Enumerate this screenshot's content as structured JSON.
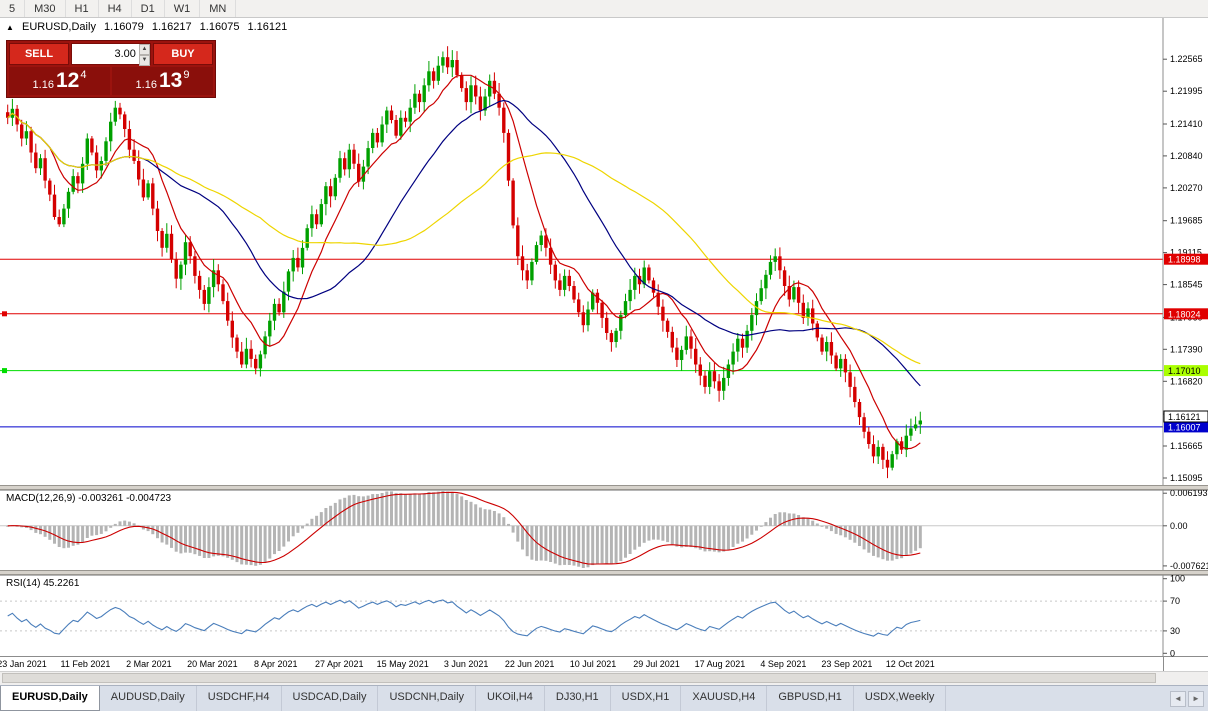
{
  "icons": {
    "collapse": "▲",
    "spinner_up": "▲",
    "spinner_down": "▼",
    "tab_scroll_left": "◄",
    "tab_scroll_right": "►"
  },
  "toolbar": {
    "timeframes": [
      "5",
      "M30",
      "H1",
      "H4",
      "D1",
      "W1",
      "MN"
    ]
  },
  "chart": {
    "title": {
      "symbol": "EURUSD,Daily",
      "open": "1.16079",
      "high": "1.16217",
      "low": "1.16075",
      "close": "1.16121"
    },
    "trade_widget": {
      "sell_label": "SELL",
      "buy_label": "BUY",
      "volume": "3.00",
      "sell_price_prefix": "1.16",
      "sell_price_big": "12",
      "sell_price_sup": "4",
      "buy_price_prefix": "1.16",
      "buy_price_big": "13",
      "buy_price_sup": "9"
    },
    "colors": {
      "up": "#00A000",
      "down": "#D40000",
      "ma_fast": "#CC0000",
      "ma_mid": "#000080",
      "ma_slow": "#EED500",
      "bid_line": "#0000CC"
    },
    "price_axis": {
      "ticks": [
        "1.22565",
        "1.21995",
        "1.21410",
        "1.20840",
        "1.20270",
        "1.19685",
        "1.19115",
        "1.18545",
        "1.17960",
        "1.17390",
        "1.16820",
        "1.16235",
        "1.15665",
        "1.15095"
      ]
    },
    "hlines": [
      {
        "price": 1.18998,
        "label": "1.18998",
        "color": "#E00000",
        "tag_bg": "#E00000",
        "tag_fg": "#FFFFFF",
        "handle": false
      },
      {
        "price": 1.18024,
        "label": "1.18024",
        "color": "#E00000",
        "tag_bg": "#E00000",
        "tag_fg": "#FFFFFF",
        "handle": true
      },
      {
        "price": 1.1701,
        "label": "1.17010",
        "color": "#00DD00",
        "tag_bg": "#AAFF00",
        "tag_fg": "#000000",
        "handle": true
      },
      {
        "price": 1.16007,
        "label": "1.16007",
        "color": "#0000CC",
        "tag_bg": "#0000CC",
        "tag_fg": "#FFFFFF",
        "handle": false
      }
    ],
    "last_price_tag": {
      "price": 1.16121,
      "label": "1.16121"
    }
  },
  "macd": {
    "title": "MACD(12,26,9) -0.003261 -0.004723",
    "axis": [
      {
        "v": 0.006193,
        "label": "0.006193"
      },
      {
        "v": 0,
        "label": "0.00"
      },
      {
        "v": -0.007621,
        "label": "-0.007621"
      }
    ]
  },
  "rsi": {
    "title": "RSI(14) 45.2261",
    "axis": [
      {
        "v": 100,
        "label": "100"
      },
      {
        "v": 70,
        "label": "70"
      },
      {
        "v": 30,
        "label": "30"
      },
      {
        "v": 0,
        "label": "0"
      }
    ],
    "levels": [
      70,
      30
    ]
  },
  "dates": [
    "23 Jan 2021",
    "11 Feb 2021",
    "2 Mar 2021",
    "20 Mar 2021",
    "8 Apr 2021",
    "27 Apr 2021",
    "15 May 2021",
    "3 Jun 2021",
    "22 Jun 2021",
    "10 Jul 2021",
    "29 Jul 2021",
    "17 Aug 2021",
    "4 Sep 2021",
    "23 Sep 2021",
    "12 Oct 2021"
  ],
  "tabs": {
    "items": [
      {
        "label": "EURUSD,Daily",
        "active": true
      },
      {
        "label": "AUDUSD,Daily",
        "active": false
      },
      {
        "label": "USDCHF,H4",
        "active": false
      },
      {
        "label": "USDCAD,Daily",
        "active": false
      },
      {
        "label": "USDCNH,Daily",
        "active": false
      },
      {
        "label": "UKOil,H4",
        "active": false
      },
      {
        "label": "DJ30,H1",
        "active": false
      },
      {
        "label": "USDX,H1",
        "active": false
      },
      {
        "label": "XAUUSD,H4",
        "active": false
      },
      {
        "label": "GBPUSD,H1",
        "active": false
      },
      {
        "label": "USDX,Weekly",
        "active": false
      }
    ]
  },
  "chart_data": {
    "type": "candlestick",
    "symbol": "EURUSD",
    "period": "Daily",
    "title": "EURUSD,Daily",
    "x_range": [
      "23 Jan 2021",
      "12 Oct 2021"
    ],
    "y_range": [
      1.1497,
      1.233
    ],
    "ohlc_current": {
      "open": 1.16079,
      "high": 1.16217,
      "low": 1.16075,
      "close": 1.16121
    },
    "levels": [
      1.18998,
      1.18024,
      1.1701,
      1.16007
    ],
    "ma_periods": {
      "fast": 10,
      "mid": 30,
      "slow": 55
    },
    "indicators": [
      {
        "name": "MACD",
        "params": [
          12,
          26,
          9
        ],
        "current_values": [
          -0.003261,
          -0.004723
        ],
        "axis_range": [
          -0.007621,
          0.006193
        ]
      },
      {
        "name": "RSI",
        "params": [
          14
        ],
        "current_value": 45.2261,
        "levels": [
          70,
          30
        ],
        "axis_range": [
          0,
          100
        ]
      }
    ],
    "closes": [
      1.2152,
      1.2168,
      1.214,
      1.2115,
      1.2128,
      1.209,
      1.2062,
      1.208,
      1.204,
      1.2015,
      1.1975,
      1.1962,
      1.199,
      1.202,
      1.2048,
      1.2035,
      1.207,
      1.2115,
      1.209,
      1.2058,
      1.2075,
      1.211,
      1.2145,
      1.217,
      1.2158,
      1.2132,
      1.2095,
      1.2075,
      1.2042,
      1.201,
      1.2035,
      1.199,
      1.195,
      1.192,
      1.1945,
      1.19,
      1.1865,
      1.189,
      1.193,
      1.1905,
      1.187,
      1.1845,
      1.182,
      1.185,
      1.188,
      1.1855,
      1.1825,
      1.179,
      1.176,
      1.1735,
      1.1712,
      1.174,
      1.1722,
      1.1705,
      1.173,
      1.1762,
      1.179,
      1.182,
      1.1805,
      1.1842,
      1.1878,
      1.1902,
      1.1885,
      1.192,
      1.1955,
      1.198,
      1.1962,
      1.1998,
      1.203,
      1.2012,
      1.2045,
      1.208,
      1.206,
      1.2095,
      1.207,
      1.2038,
      1.2065,
      1.2098,
      1.2125,
      1.2108,
      1.214,
      1.2165,
      1.2148,
      1.212,
      1.2152,
      1.2145,
      1.217,
      1.2195,
      1.218,
      1.221,
      1.2235,
      1.2218,
      1.2245,
      1.226,
      1.2242,
      1.2255,
      1.2228,
      1.2205,
      1.218,
      1.221,
      1.219,
      1.2165,
      1.219,
      1.2218,
      1.2195,
      1.217,
      1.2125,
      1.204,
      1.196,
      1.1905,
      1.188,
      1.1862,
      1.1895,
      1.1925,
      1.1942,
      1.192,
      1.189,
      1.1862,
      1.1845,
      1.187,
      1.1852,
      1.1828,
      1.1805,
      1.1782,
      1.181,
      1.184,
      1.1822,
      1.1795,
      1.1768,
      1.1752,
      1.1772,
      1.18,
      1.1825,
      1.1845,
      1.187,
      1.1855,
      1.1885,
      1.1862,
      1.184,
      1.1815,
      1.179,
      1.177,
      1.1742,
      1.172,
      1.1738,
      1.1762,
      1.174,
      1.1712,
      1.1692,
      1.1672,
      1.17,
      1.1682,
      1.1665,
      1.1688,
      1.1712,
      1.1735,
      1.1758,
      1.1742,
      1.1772,
      1.18,
      1.1825,
      1.1848,
      1.1872,
      1.1895,
      1.1905,
      1.188,
      1.1852,
      1.1828,
      1.185,
      1.1822,
      1.1795,
      1.1812,
      1.1785,
      1.176,
      1.1735,
      1.1752,
      1.1728,
      1.1705,
      1.1722,
      1.1698,
      1.1672,
      1.1645,
      1.1618,
      1.1592,
      1.157,
      1.1548,
      1.1565,
      1.1542,
      1.1528,
      1.1552,
      1.1575,
      1.156,
      1.1585,
      1.1598,
      1.1605,
      1.1612
    ]
  }
}
